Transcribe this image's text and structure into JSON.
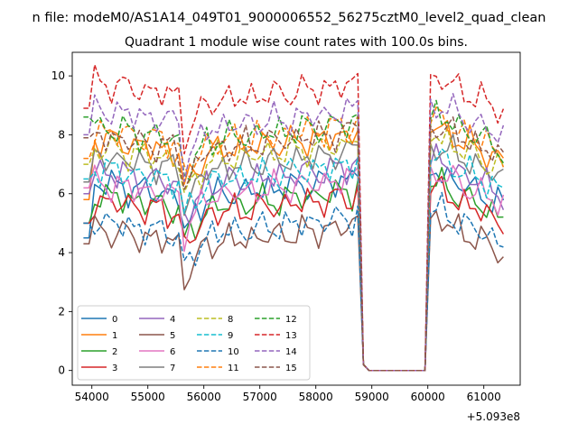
{
  "chart_data": {
    "type": "line",
    "suptitle": "n file: modeM0/AS1A14_049T01_9000006552_56275cztM0_level2_quad_clean",
    "title": "Quadrant 1 module wise count rates with 100.0s bins.",
    "xlabel": "",
    "ylabel": "",
    "x_offset_label": "+5.093e8",
    "xlim": [
      53650,
      61650
    ],
    "ylim": [
      -0.5,
      10.8
    ],
    "xticks": [
      54000,
      55000,
      56000,
      57000,
      58000,
      59000,
      60000,
      61000
    ],
    "yticks": [
      0,
      2,
      4,
      6,
      8,
      10
    ],
    "grid": false,
    "legend_position": "lower-left",
    "legend_columns": 4,
    "series": [
      {
        "name": "0",
        "color": "#1f77b4",
        "dash": "solid",
        "level": 6.1,
        "start": 4.5,
        "phase": 0.0
      },
      {
        "name": "1",
        "color": "#ff7f0e",
        "dash": "solid",
        "level": 7.6,
        "start": 5.8,
        "phase": 0.9
      },
      {
        "name": "2",
        "color": "#2ca02c",
        "dash": "solid",
        "level": 5.7,
        "start": 5.0,
        "phase": 1.7
      },
      {
        "name": "3",
        "color": "#d62728",
        "dash": "solid",
        "level": 5.5,
        "start": 5.0,
        "phase": 2.5
      },
      {
        "name": "4",
        "color": "#9467bd",
        "dash": "solid",
        "level": 6.5,
        "start": 6.0,
        "phase": 3.3
      },
      {
        "name": "5",
        "color": "#8c564b",
        "dash": "solid",
        "level": 4.5,
        "start": 4.3,
        "phase": 4.1
      },
      {
        "name": "6",
        "color": "#e377c2",
        "dash": "solid",
        "level": 6.1,
        "start": 6.2,
        "phase": 4.9
      },
      {
        "name": "7",
        "color": "#7f7f7f",
        "dash": "solid",
        "level": 7.0,
        "start": 6.4,
        "phase": 5.7
      },
      {
        "name": "8",
        "color": "#bcbd22",
        "dash": "dashed",
        "level": 7.3,
        "start": 7.0,
        "phase": 0.4
      },
      {
        "name": "9",
        "color": "#17becf",
        "dash": "dashed",
        "level": 6.6,
        "start": 6.5,
        "phase": 1.2
      },
      {
        "name": "10",
        "color": "#1f77b4",
        "dash": "dashed",
        "level": 4.8,
        "start": 5.0,
        "phase": 2.0
      },
      {
        "name": "11",
        "color": "#ff7f0e",
        "dash": "dashed",
        "level": 7.9,
        "start": 7.2,
        "phase": 2.8
      },
      {
        "name": "12",
        "color": "#2ca02c",
        "dash": "dashed",
        "level": 8.0,
        "start": 8.6,
        "phase": 3.6
      },
      {
        "name": "13",
        "color": "#d62728",
        "dash": "dashed",
        "level": 9.3,
        "start": 8.9,
        "phase": 4.4
      },
      {
        "name": "14",
        "color": "#9467bd",
        "dash": "dashed",
        "level": 8.4,
        "start": 8.0,
        "phase": 5.2
      },
      {
        "name": "15",
        "color": "#8c564b",
        "dash": "dashed",
        "level": 7.7,
        "start": 7.9,
        "phase": 6.0
      }
    ]
  }
}
